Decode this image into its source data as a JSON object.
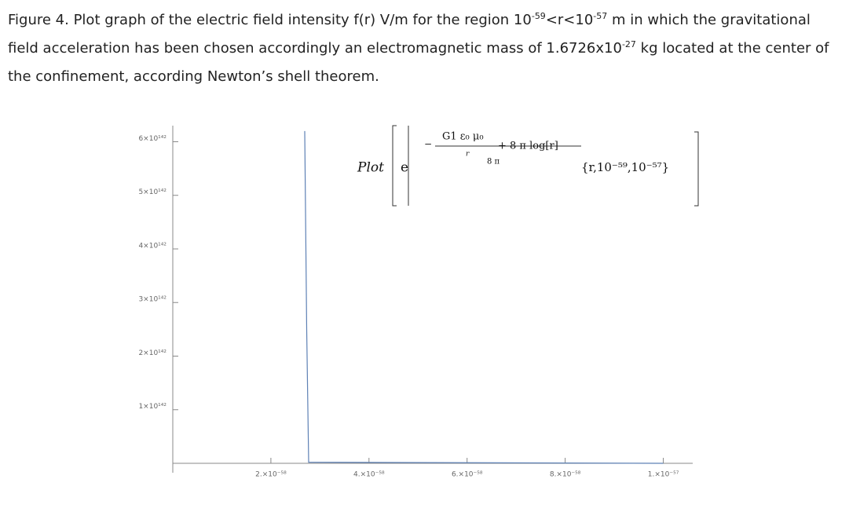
{
  "caption": [
    {
      "text": "Figure 4."
    },
    {
      "text": " Plot graph of the electric field intensity f(r) V/m for the region 10"
    },
    {
      "text": "-59",
      "sup": true
    },
    {
      "text": "<r<10"
    },
    {
      "text": "-57",
      "sup": true
    },
    {
      "text": " m in which the gravitational field acceleration has been chosen accordingly an electromagnetic mass of 1.6726x10"
    },
    {
      "text": "-27",
      "sup": true
    },
    {
      "text": " kg located at the center of the confinement, according Newton’s shell theorem."
    }
  ],
  "chart_data": {
    "type": "line",
    "annotation": {
      "plot": "Plot",
      "base": "e",
      "numerator_top": "G1 ε₀ μ₀",
      "numerator_den": "r",
      "numerator_rest": "+ 8 π log[r]",
      "denominator": "8 π",
      "range": "{r,10⁻⁵⁹,10⁻⁵⁷}"
    },
    "x": [
      2.69e-58,
      2.73e-58,
      2.77e-58,
      1e-57
    ],
    "series": [
      {
        "color": "#5e81b5",
        "values": [
          6.2e+142,
          2.5e+142,
          2e+140,
          0
        ]
      }
    ],
    "xlim": [
      0,
      1.06e-57
    ],
    "ylim": [
      0,
      6.3e+142
    ],
    "xticks": [
      {
        "value": 2e-58,
        "label": "2.×10⁻⁵⁸"
      },
      {
        "value": 4e-58,
        "label": "4.×10⁻⁵⁸"
      },
      {
        "value": 6e-58,
        "label": "6.×10⁻⁵⁸"
      },
      {
        "value": 8e-58,
        "label": "8.×10⁻⁵⁸"
      },
      {
        "value": 1e-57,
        "label": "1.×10⁻⁵⁷"
      }
    ],
    "yticks": [
      {
        "value": 1e+142,
        "label": "1×10¹⁴²"
      },
      {
        "value": 2e+142,
        "label": "2×10¹⁴²"
      },
      {
        "value": 3e+142,
        "label": "3×10¹⁴²"
      },
      {
        "value": 4e+142,
        "label": "4×10¹⁴²"
      },
      {
        "value": 5e+142,
        "label": "5×10¹⁴²"
      },
      {
        "value": 6e+142,
        "label": "6×10¹⁴²"
      }
    ]
  }
}
